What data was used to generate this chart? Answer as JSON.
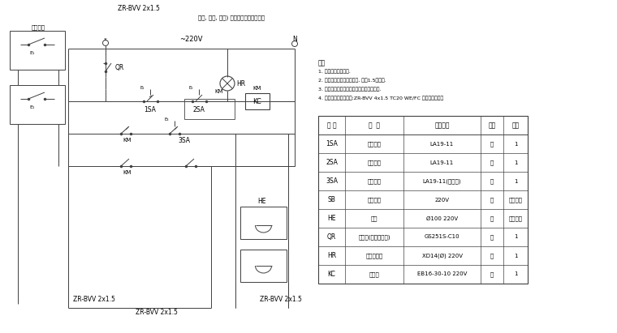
{
  "bg_color": "#ffffff",
  "lc": "#404040",
  "lw": 0.7,
  "title_top": "等门, 前流, 模组) 信号灯及类插门上安装",
  "label_panel": "被测装置",
  "label_cable": "ZR-BVV 2x1.5",
  "label_voltage": "~220V",
  "notes_title": "说明",
  "notes": [
    "1. 增加火灾温警收生.",
    "2. 控制箱要在水泵控制箱旁, 距离1.5米刚度.",
    "3. 水泵控制及警铃合器个灭大拔办各组一个.",
    "4. 警铃及被控面能线路:ZR-BVV 4x1.5 TC20 WE/FC 市道就近管敷。"
  ],
  "table_headers": [
    "符 号",
    "名  称",
    "型号规格",
    "单位",
    "数量"
  ],
  "table_rows": [
    [
      "1SA",
      "停止按钮",
      "LA19-11",
      "个",
      "1"
    ],
    [
      "2SA",
      "启动按钮",
      "LA19-11",
      "个",
      "1"
    ],
    [
      "3SA",
      "消音按钮",
      "LA19-11(带概率)",
      "个",
      "1"
    ],
    [
      "SB",
      "被测按钮",
      "220V",
      "个",
      "同消火箱"
    ],
    [
      "HE",
      "警铃",
      "Ø100 220V",
      "个",
      "同消火箱"
    ],
    [
      "QR",
      "断路器(带漏电保护)",
      "GS251S-C10",
      "个",
      "1"
    ],
    [
      "HR",
      "电源指示灯",
      "XD14(Ø) 220V",
      "个",
      "1"
    ],
    [
      "KC",
      "接触器",
      "EB16-30-10 220V",
      "个",
      "1"
    ]
  ]
}
